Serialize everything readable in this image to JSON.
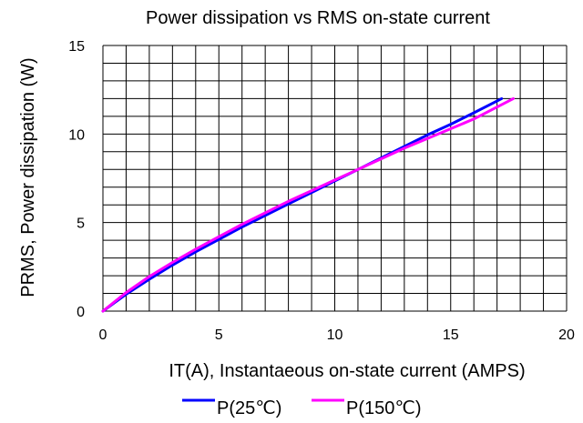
{
  "chart_data": {
    "type": "line",
    "title": "Power dissipation vs RMS on-state current",
    "xlabel": "IT(A), Instantaeous on-state current (AMPS)",
    "ylabel": "PRMS, Power dissipation (W)",
    "xlim": [
      0,
      20
    ],
    "ylim": [
      0,
      15
    ],
    "xticks": [
      "0",
      "5",
      "10",
      "15",
      "20"
    ],
    "yticks": [
      "0",
      "5",
      "10",
      "15"
    ],
    "grid": true,
    "legend_position": "bottom-center",
    "series": [
      {
        "name": "P(25℃)",
        "color": "#0000ff",
        "x": [
          0,
          1,
          2,
          3,
          4,
          5,
          6,
          7,
          8,
          9,
          10,
          11,
          12,
          13,
          14,
          15,
          16,
          17.2
        ],
        "y": [
          0,
          0.95,
          1.8,
          2.6,
          3.35,
          4.05,
          4.75,
          5.4,
          6.05,
          6.7,
          7.35,
          8.0,
          8.65,
          9.3,
          9.95,
          10.55,
          11.2,
          12.0
        ]
      },
      {
        "name": "P(150℃)",
        "color": "#ff00ff",
        "x": [
          0,
          1,
          2,
          3,
          4,
          5,
          6,
          7,
          8,
          9,
          10,
          11,
          12,
          13,
          14,
          15,
          16,
          17.7
        ],
        "y": [
          0,
          1.05,
          1.95,
          2.75,
          3.5,
          4.2,
          4.9,
          5.55,
          6.2,
          6.8,
          7.4,
          8.0,
          8.6,
          9.2,
          9.75,
          10.3,
          10.85,
          12.0
        ]
      }
    ]
  }
}
